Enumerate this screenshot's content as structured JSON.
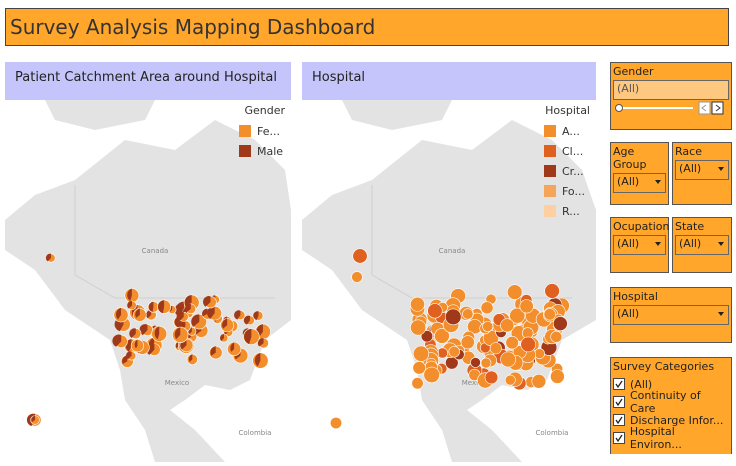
{
  "header": {
    "title": "Survey Analysis Mapping Dashboard"
  },
  "panels": [
    {
      "title": "Patient Catchment Area around Hospital",
      "legend": {
        "title": "Gender",
        "items": [
          {
            "label": "Fe...",
            "color": "#f28e2b"
          },
          {
            "label": "Male",
            "color": "#a0391a"
          }
        ]
      },
      "map_labels": [
        "Canada",
        "Mexico",
        "Colombia"
      ]
    },
    {
      "title": "Hospital",
      "legend": {
        "title": "Hospital",
        "items": [
          {
            "label": "A...",
            "color": "#f28e2b"
          },
          {
            "label": "Cl...",
            "color": "#e0601f"
          },
          {
            "label": "Cr...",
            "color": "#a0391a"
          },
          {
            "label": "Fo...",
            "color": "#f5a55a"
          },
          {
            "label": "R...",
            "color": "#fdd0a2"
          }
        ]
      },
      "map_labels": [
        "Canada",
        "Mexico",
        "Colombia"
      ]
    }
  ],
  "filters": {
    "gender": {
      "title": "Gender",
      "value": "(All)"
    },
    "age_group": {
      "title": "Age Group",
      "value": "(All)"
    },
    "race": {
      "title": "Race",
      "value": "(All)"
    },
    "ocupation": {
      "title": "Ocupation",
      "value": "(All)"
    },
    "state": {
      "title": "State",
      "value": "(All)"
    },
    "hospital": {
      "title": "Hospital",
      "value": "(All)"
    },
    "survey_categories": {
      "title": "Survey Categories",
      "items": [
        "(All)",
        "Continuity of Care",
        "Discharge Infor...",
        "Hospital Environ..."
      ]
    }
  }
}
